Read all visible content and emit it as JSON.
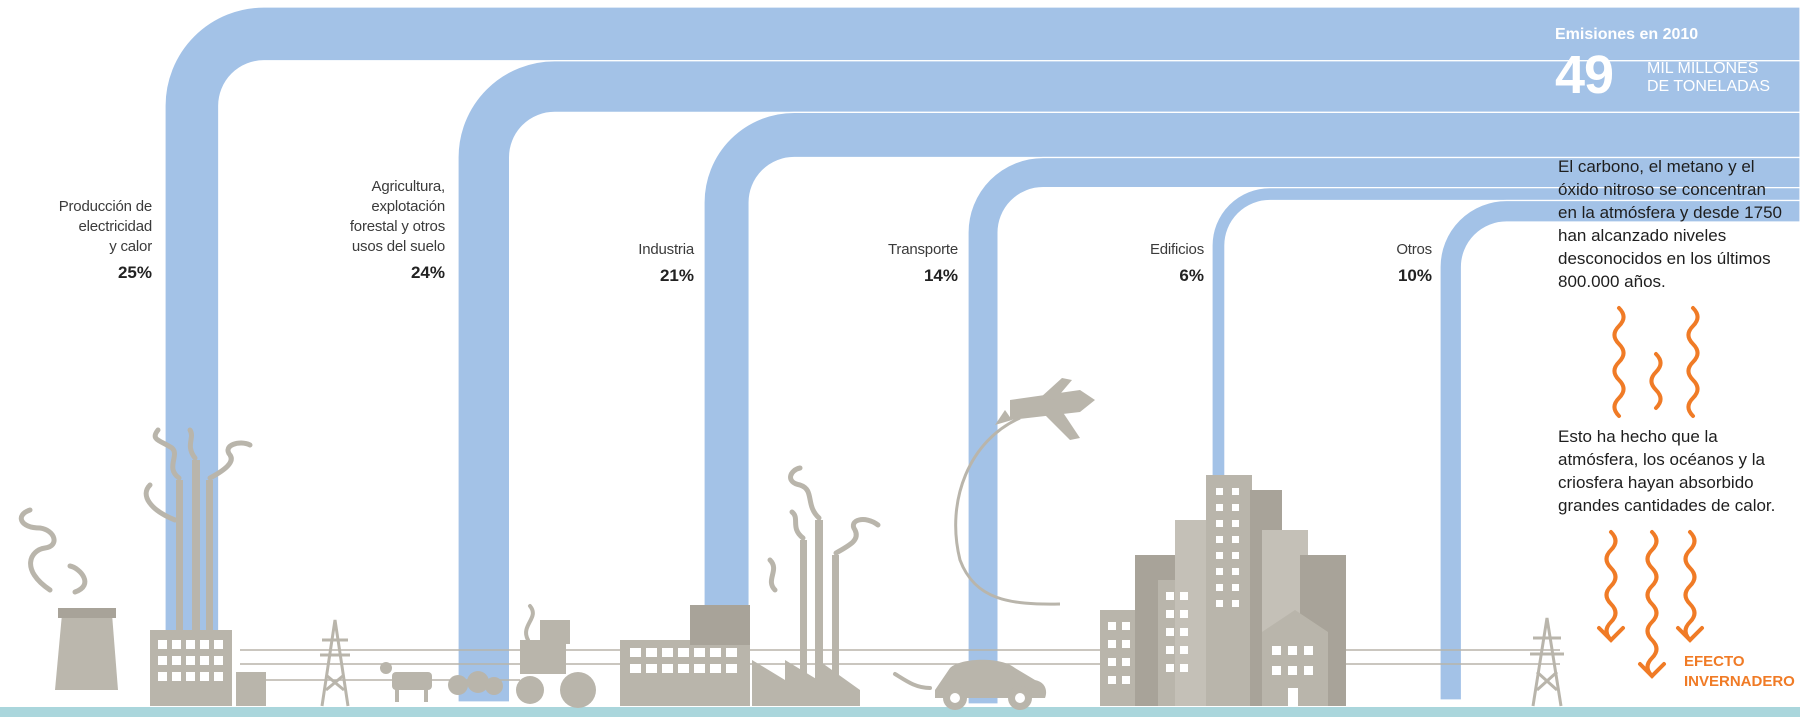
{
  "colors": {
    "flow": "#a3c2e7",
    "flow_edge": "#ffffff",
    "building": "#b9b5ab",
    "building_dark": "#a8a399",
    "ground": "#aad6dc",
    "accent": "#f07b26"
  },
  "total": {
    "title": "Emisiones en 2010",
    "value": "49",
    "unit": "MIL MILLONES\nDE TONELADAS"
  },
  "sectors": [
    {
      "name": "Producción de\nelectricidad\ny calor",
      "percent": "25%",
      "value": 25,
      "icon": "power-plant-icon"
    },
    {
      "name": "Agricultura,\nexplotación\nforestal y otros\nusos del suelo",
      "percent": "24%",
      "value": 24,
      "icon": "farm-icon"
    },
    {
      "name": "Industria",
      "percent": "21%",
      "value": 21,
      "icon": "factory-icon"
    },
    {
      "name": "Transporte",
      "percent": "14%",
      "value": 14,
      "icon": "car-plane-icon"
    },
    {
      "name": "Edificios",
      "percent": "6%",
      "value": 6,
      "icon": "city-buildings-icon"
    },
    {
      "name": "Otros",
      "percent": "10%",
      "value": 10,
      "icon": "power-tower-icon"
    }
  ],
  "notes": {
    "first": "El carbono, el metano y el\nóxido nitroso se concentran\nen la atmósfera y desde 1750\nhan alcanzado niveles\ndesconocidos en los últimos\n800.000 años.",
    "second": "Esto ha hecho que la\natmósfera, los océanos y la\ncriosfera hayan absorbido\ngrandes cantidades de calor.",
    "effect": "EFECTO\nINVERNADERO"
  }
}
